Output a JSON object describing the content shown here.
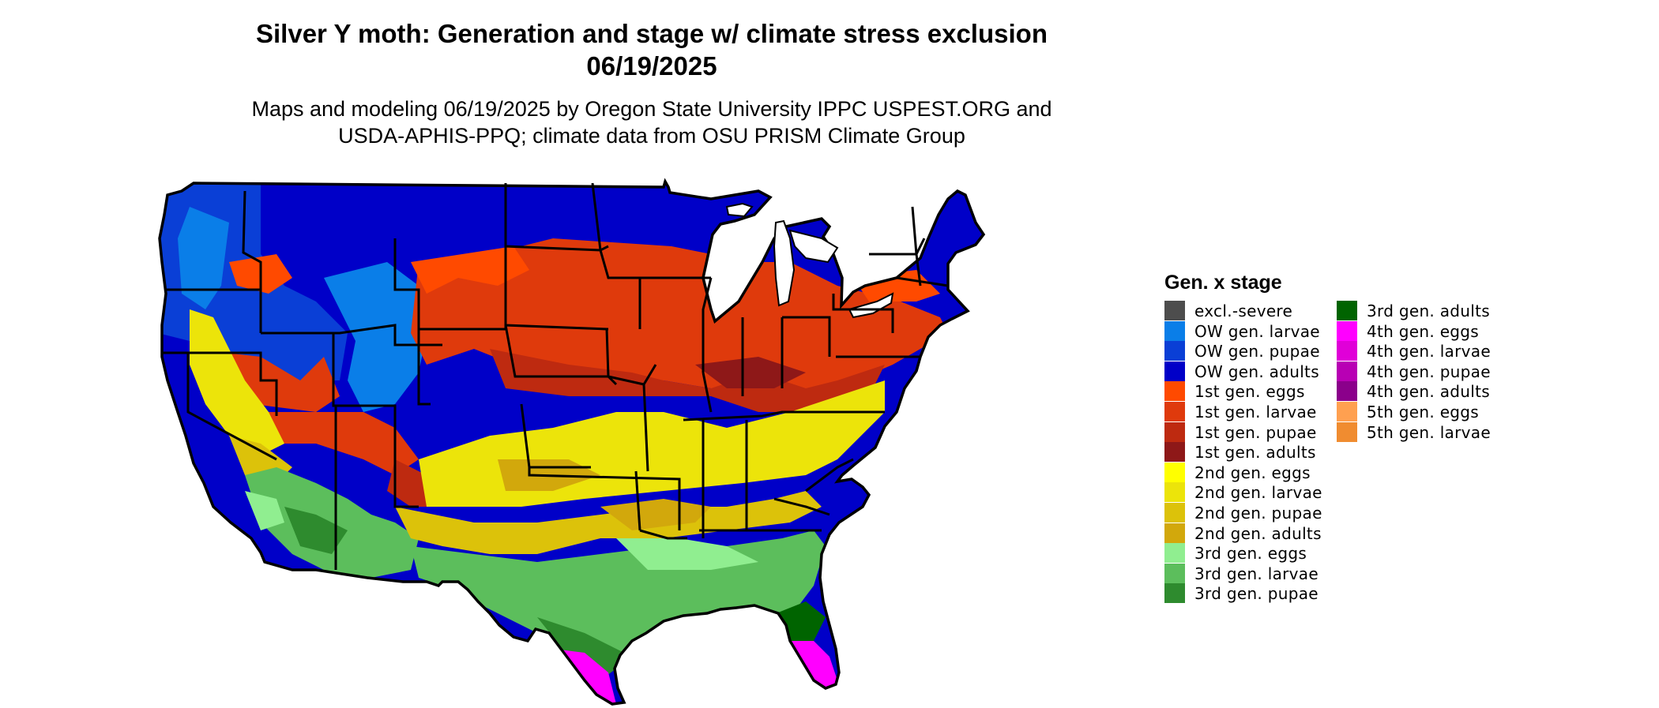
{
  "title": "Silver Y moth: Generation and stage w/ climate stress exclusion",
  "date": "06/19/2025",
  "subtitle_line1": "Maps and modeling 06/19/2025 by Oregon State University IPPC USPEST.ORG and",
  "subtitle_line2": "USDA-APHIS-PPQ; climate data from OSU PRISM Climate Group",
  "legend": {
    "title": "Gen. x stage",
    "col1": [
      {
        "label": "excl.-severe",
        "color": "#4d4d4d"
      },
      {
        "label": "OW gen. larvae",
        "color": "#0a7ee8"
      },
      {
        "label": "OW gen. pupae",
        "color": "#0a3fd6"
      },
      {
        "label": "OW gen. adults",
        "color": "#0000c8"
      },
      {
        "label": "1st gen. eggs",
        "color": "#ff4a00"
      },
      {
        "label": "1st gen. larvae",
        "color": "#df3a0c"
      },
      {
        "label": "1st gen. pupae",
        "color": "#be2a10"
      },
      {
        "label": "1st gen. adults",
        "color": "#8e1818"
      },
      {
        "label": "2nd gen. eggs",
        "color": "#ffff00"
      },
      {
        "label": "2nd gen. larvae",
        "color": "#ece40a"
      },
      {
        "label": "2nd gen. pupae",
        "color": "#dcc20a"
      },
      {
        "label": "2nd gen. adults",
        "color": "#d2a80c"
      },
      {
        "label": "3rd gen. eggs",
        "color": "#90ee90"
      },
      {
        "label": "3rd gen. larvae",
        "color": "#5cbe5c"
      },
      {
        "label": "3rd gen. pupae",
        "color": "#2e8b2e"
      }
    ],
    "col2": [
      {
        "label": "3rd gen. adults",
        "color": "#006400"
      },
      {
        "label": "4th gen. eggs",
        "color": "#ff00ff"
      },
      {
        "label": "4th gen. larvae",
        "color": "#e000d8"
      },
      {
        "label": "4th gen. pupae",
        "color": "#b800b4"
      },
      {
        "label": "4th gen. adults",
        "color": "#8b008b"
      },
      {
        "label": "5th gen. eggs",
        "color": "#ffa050"
      },
      {
        "label": "5th gen. larvae",
        "color": "#f08c30"
      }
    ]
  }
}
